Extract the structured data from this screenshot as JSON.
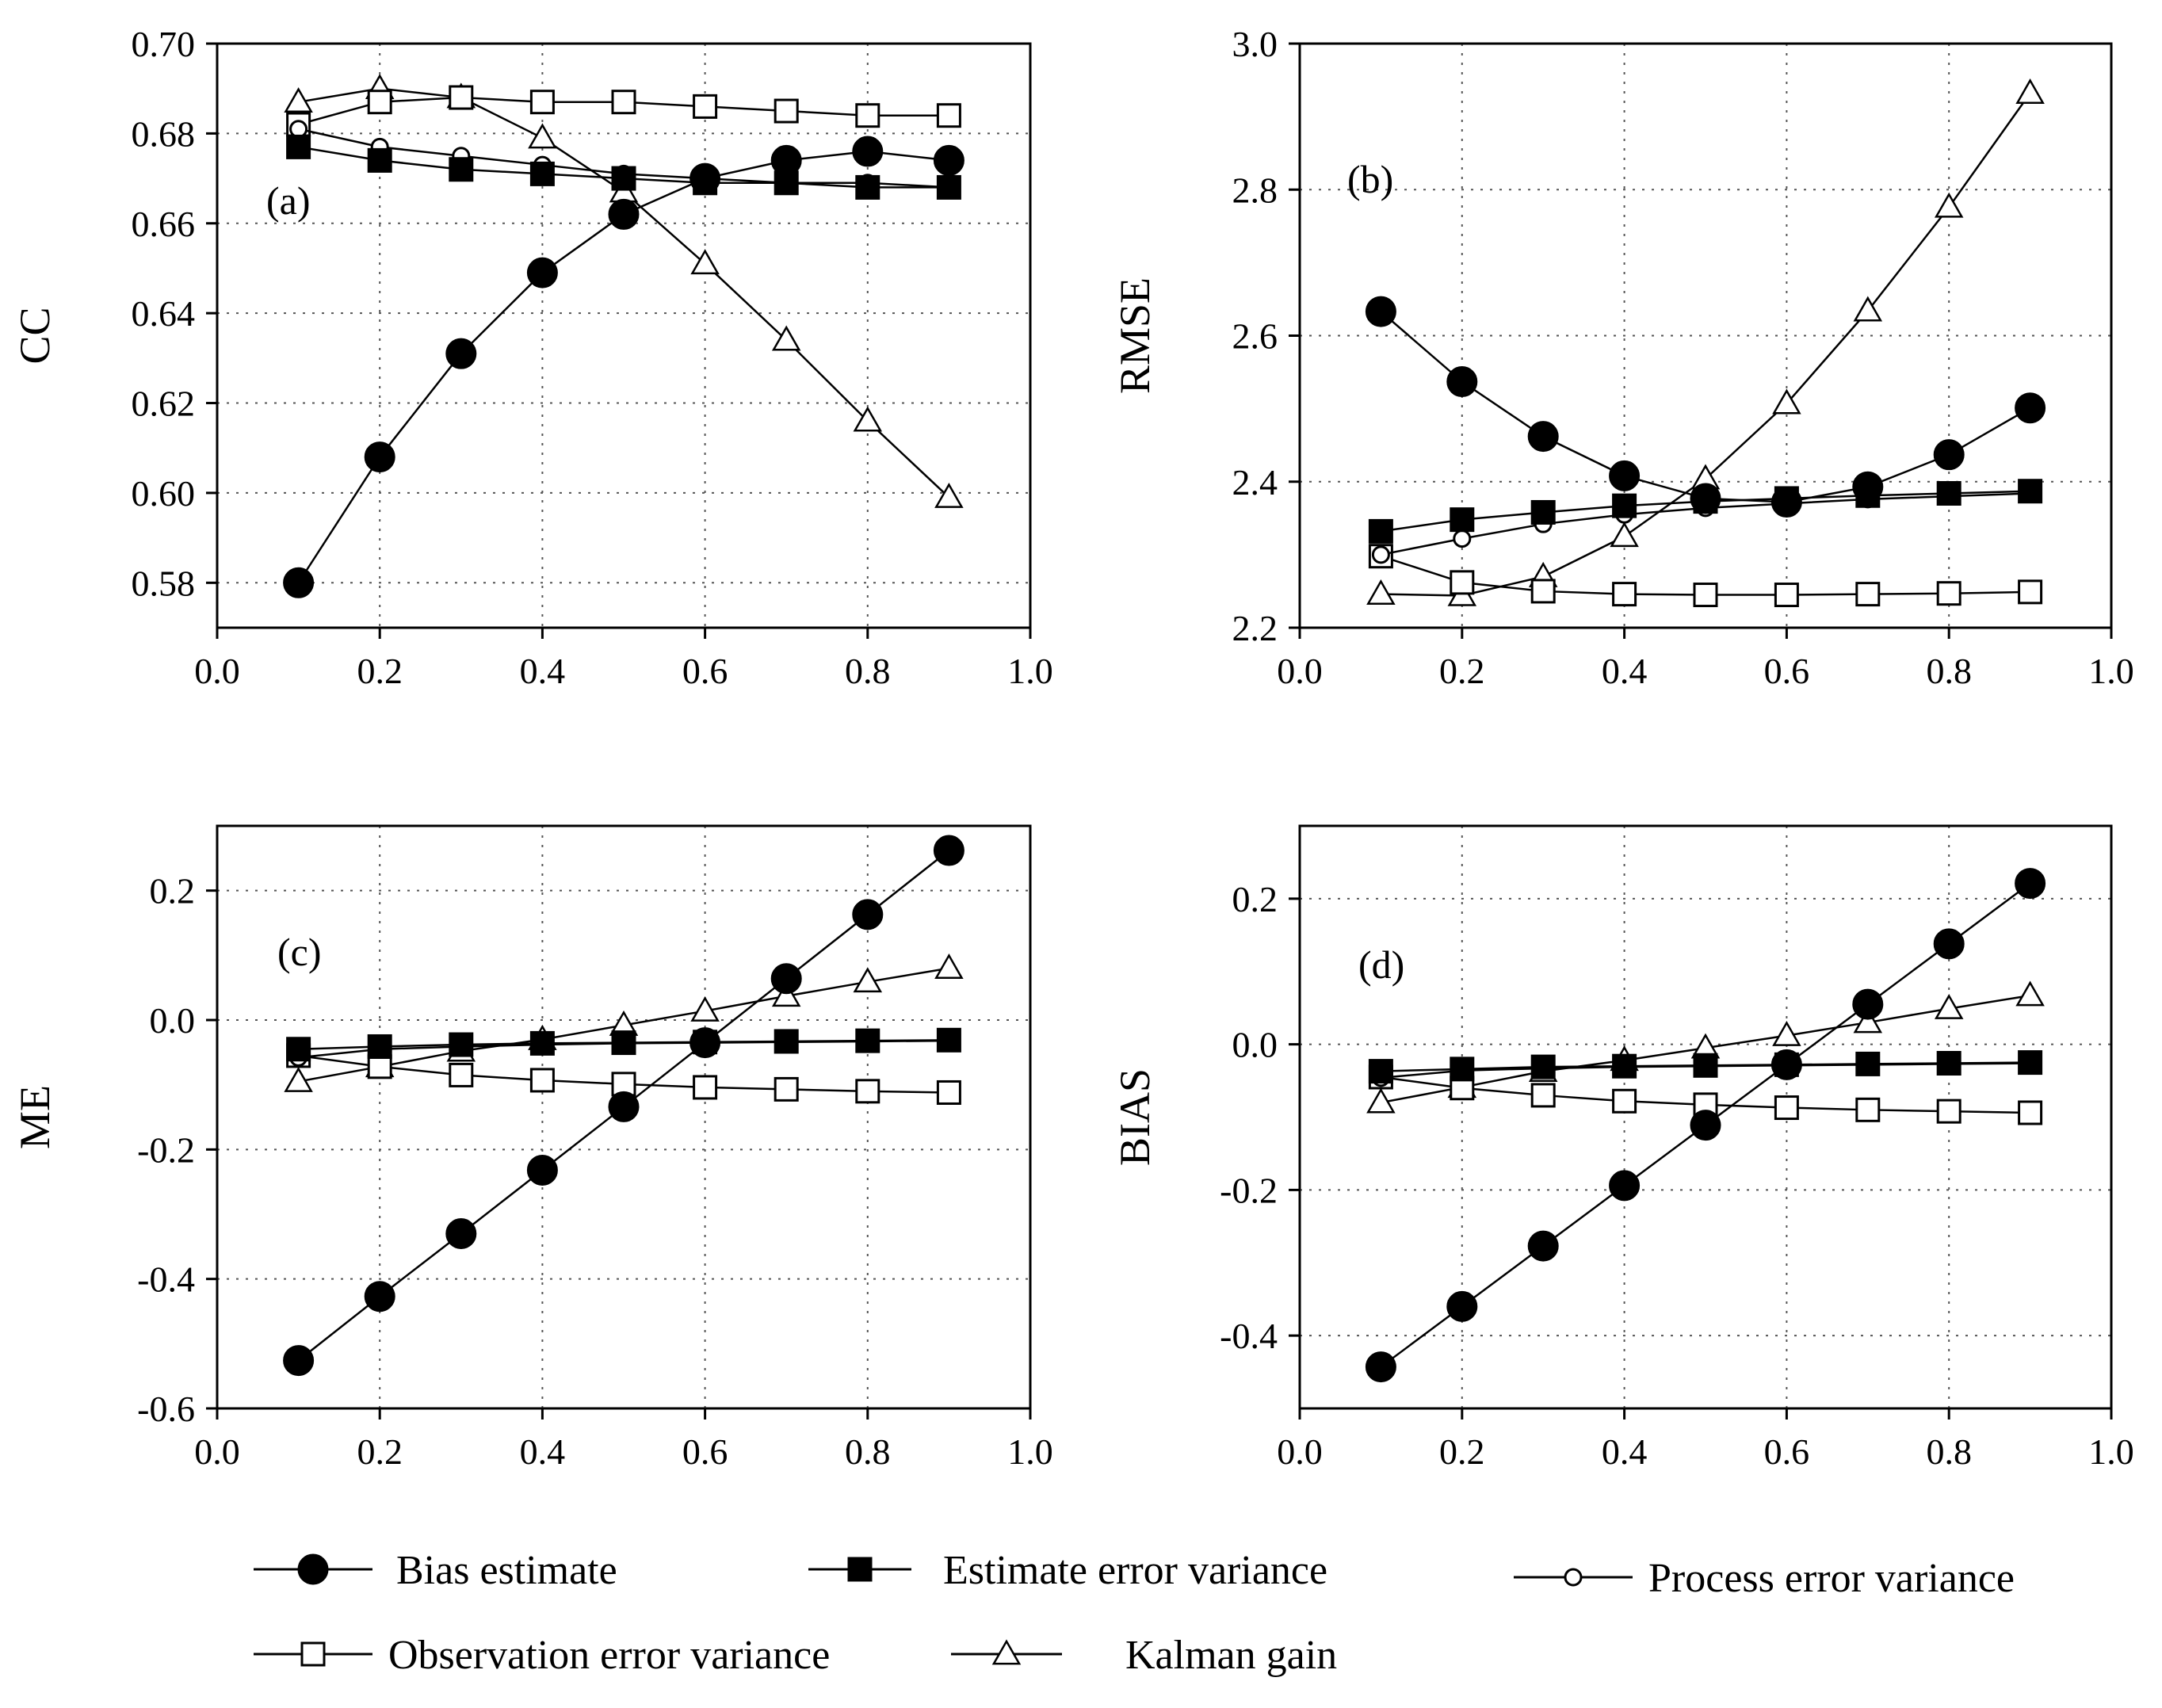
{
  "legend": [
    {
      "key": "bias",
      "label": "Bias estimate"
    },
    {
      "key": "est",
      "label": "Estimate error variance"
    },
    {
      "key": "proc",
      "label": "Process error variance"
    },
    {
      "key": "obs",
      "label": "Observation error variance"
    },
    {
      "key": "kal",
      "label": "Kalman gain"
    }
  ],
  "series_styles": {
    "bias": {
      "marker": "circle",
      "fill": "#000000",
      "size": "large"
    },
    "est": {
      "marker": "square",
      "fill": "#000000",
      "size": "medium"
    },
    "proc": {
      "marker": "circle",
      "fill": "#ffffff",
      "size": "small"
    },
    "obs": {
      "marker": "square",
      "fill": "#ffffff",
      "size": "medium"
    },
    "kal": {
      "marker": "triangle",
      "fill": "#ffffff",
      "size": "medium"
    }
  },
  "chart_data": [
    {
      "type": "line",
      "panel": "a",
      "panel_label": "(a)",
      "xlabel": "",
      "ylabel": "CC",
      "xlim": [
        0.0,
        1.0
      ],
      "ylim": [
        0.57,
        0.7
      ],
      "xticks": [
        "0.0",
        "0.2",
        "0.4",
        "0.6",
        "0.8",
        "1.0"
      ],
      "yticks": [
        "0.58",
        "0.60",
        "0.62",
        "0.64",
        "0.66",
        "0.68",
        "0.70"
      ],
      "grid": true,
      "x": [
        0.1,
        0.2,
        0.3,
        0.4,
        0.5,
        0.6,
        0.7,
        0.8,
        0.9
      ],
      "series": [
        {
          "key": "kal",
          "name": "Kalman gain",
          "values": [
            0.687,
            0.69,
            0.688,
            0.679,
            0.667,
            0.651,
            0.634,
            0.616,
            0.599
          ]
        },
        {
          "key": "obs",
          "name": "Observation error variance",
          "values": [
            0.682,
            0.687,
            0.688,
            0.687,
            0.687,
            0.686,
            0.685,
            0.684,
            0.684
          ]
        },
        {
          "key": "proc",
          "name": "Process error variance",
          "values": [
            0.681,
            0.677,
            0.675,
            0.673,
            0.671,
            0.67,
            0.669,
            0.669,
            0.668
          ]
        },
        {
          "key": "est",
          "name": "Estimate error variance",
          "values": [
            0.677,
            0.674,
            0.672,
            0.671,
            0.67,
            0.669,
            0.669,
            0.668,
            0.668
          ]
        },
        {
          "key": "bias",
          "name": "Bias estimate",
          "values": [
            0.58,
            0.608,
            0.631,
            0.649,
            0.662,
            0.67,
            0.674,
            0.676,
            0.674
          ]
        }
      ]
    },
    {
      "type": "line",
      "panel": "b",
      "panel_label": "(b)",
      "xlabel": "",
      "ylabel": "RMSE",
      "xlim": [
        0.0,
        1.0
      ],
      "ylim": [
        2.2,
        3.0
      ],
      "xticks": [
        "0.0",
        "0.2",
        "0.4",
        "0.6",
        "0.8",
        "1.0"
      ],
      "yticks": [
        "2.2",
        "2.4",
        "2.6",
        "2.8",
        "3.0"
      ],
      "grid": true,
      "x": [
        0.1,
        0.2,
        0.3,
        0.4,
        0.5,
        0.6,
        0.7,
        0.8,
        0.9
      ],
      "series": [
        {
          "key": "kal",
          "name": "Kalman gain",
          "values": [
            2.246,
            2.244,
            2.27,
            2.325,
            2.404,
            2.507,
            2.634,
            2.776,
            2.932
          ]
        },
        {
          "key": "obs",
          "name": "Observation error variance",
          "values": [
            2.298,
            2.262,
            2.25,
            2.246,
            2.245,
            2.245,
            2.246,
            2.247,
            2.249
          ]
        },
        {
          "key": "proc",
          "name": "Process error variance",
          "values": [
            2.3,
            2.322,
            2.342,
            2.355,
            2.364,
            2.37,
            2.376,
            2.38,
            2.384
          ]
        },
        {
          "key": "est",
          "name": "Estimate error variance",
          "values": [
            2.332,
            2.348,
            2.358,
            2.367,
            2.373,
            2.377,
            2.381,
            2.384,
            2.387
          ]
        },
        {
          "key": "bias",
          "name": "Bias estimate",
          "values": [
            2.633,
            2.537,
            2.462,
            2.408,
            2.377,
            2.372,
            2.393,
            2.437,
            2.501
          ]
        }
      ]
    },
    {
      "type": "line",
      "panel": "c",
      "panel_label": "(c)",
      "xlabel": "",
      "ylabel": "ME",
      "xlim": [
        0.0,
        1.0
      ],
      "ylim": [
        -0.6,
        0.3
      ],
      "xticks": [
        "0.0",
        "0.2",
        "0.4",
        "0.6",
        "0.8",
        "1.0"
      ],
      "yticks": [
        "-0.6",
        "-0.4",
        "-0.2",
        "0.0",
        "0.2"
      ],
      "grid": true,
      "x": [
        0.1,
        0.2,
        0.3,
        0.4,
        0.5,
        0.6,
        0.7,
        0.8,
        0.9
      ],
      "series": [
        {
          "key": "kal",
          "name": "Kalman gain",
          "values": [
            -0.095,
            -0.072,
            -0.048,
            -0.03,
            -0.008,
            0.014,
            0.037,
            0.059,
            0.08
          ]
        },
        {
          "key": "obs",
          "name": "Observation error variance",
          "values": [
            -0.055,
            -0.072,
            -0.085,
            -0.093,
            -0.099,
            -0.104,
            -0.107,
            -0.11,
            -0.112
          ]
        },
        {
          "key": "proc",
          "name": "Process error variance",
          "values": [
            -0.058,
            -0.045,
            -0.041,
            -0.038,
            -0.036,
            -0.035,
            -0.034,
            -0.033,
            -0.032
          ]
        },
        {
          "key": "est",
          "name": "Estimate error variance",
          "values": [
            -0.045,
            -0.041,
            -0.038,
            -0.036,
            -0.035,
            -0.034,
            -0.033,
            -0.032,
            -0.031
          ]
        },
        {
          "key": "bias",
          "name": "Bias estimate",
          "values": [
            -0.526,
            -0.427,
            -0.33,
            -0.232,
            -0.134,
            -0.035,
            0.064,
            0.163,
            0.262
          ]
        }
      ]
    },
    {
      "type": "line",
      "panel": "d",
      "panel_label": "(d)",
      "xlabel": "",
      "ylabel": "BIAS",
      "xlim": [
        0.0,
        1.0
      ],
      "ylim": [
        -0.5,
        0.3
      ],
      "xticks": [
        "0.0",
        "0.2",
        "0.4",
        "0.6",
        "0.8",
        "1.0"
      ],
      "yticks": [
        "-0.4",
        "-0.2",
        "0.0",
        "0.2"
      ],
      "grid": true,
      "x": [
        0.1,
        0.2,
        0.3,
        0.4,
        0.5,
        0.6,
        0.7,
        0.8,
        0.9
      ],
      "series": [
        {
          "key": "kal",
          "name": "Kalman gain",
          "values": [
            -0.08,
            -0.059,
            -0.037,
            -0.022,
            -0.005,
            0.012,
            0.03,
            0.049,
            0.067
          ]
        },
        {
          "key": "obs",
          "name": "Observation error variance",
          "values": [
            -0.045,
            -0.06,
            -0.07,
            -0.078,
            -0.083,
            -0.087,
            -0.09,
            -0.092,
            -0.094
          ]
        },
        {
          "key": "proc",
          "name": "Process error variance",
          "values": [
            -0.046,
            -0.036,
            -0.033,
            -0.031,
            -0.03,
            -0.029,
            -0.028,
            -0.027,
            -0.026
          ]
        },
        {
          "key": "est",
          "name": "Estimate error variance",
          "values": [
            -0.037,
            -0.034,
            -0.031,
            -0.03,
            -0.029,
            -0.028,
            -0.027,
            -0.026,
            -0.025
          ]
        },
        {
          "key": "bias",
          "name": "Bias estimate",
          "values": [
            -0.443,
            -0.36,
            -0.277,
            -0.194,
            -0.111,
            -0.028,
            0.055,
            0.138,
            0.221
          ]
        }
      ]
    }
  ]
}
